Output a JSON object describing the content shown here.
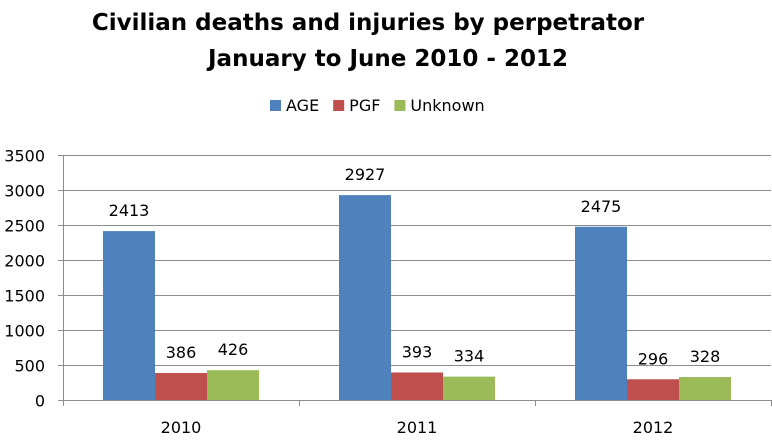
{
  "chart_data": {
    "type": "bar",
    "title_lines": [
      "Civilian deaths and injuries by perpetrator",
      "January  to June  2010 - 2012"
    ],
    "categories": [
      "2010",
      "2011",
      "2012"
    ],
    "series": [
      {
        "name": "AGE",
        "color": "#4f81bd",
        "values": [
          2413,
          2927,
          2475
        ]
      },
      {
        "name": "PGF",
        "color": "#c0504d",
        "values": [
          386,
          393,
          296
        ]
      },
      {
        "name": "Unknown",
        "color": "#9bbb59",
        "values": [
          426,
          334,
          328
        ]
      }
    ],
    "yticks": [
      0,
      500,
      1000,
      1500,
      2000,
      2500,
      3000,
      3500
    ],
    "ylim": [
      0,
      3500
    ],
    "xlabel": "",
    "ylabel": "",
    "grid": true,
    "legend_position": "top",
    "data_labels": true
  }
}
